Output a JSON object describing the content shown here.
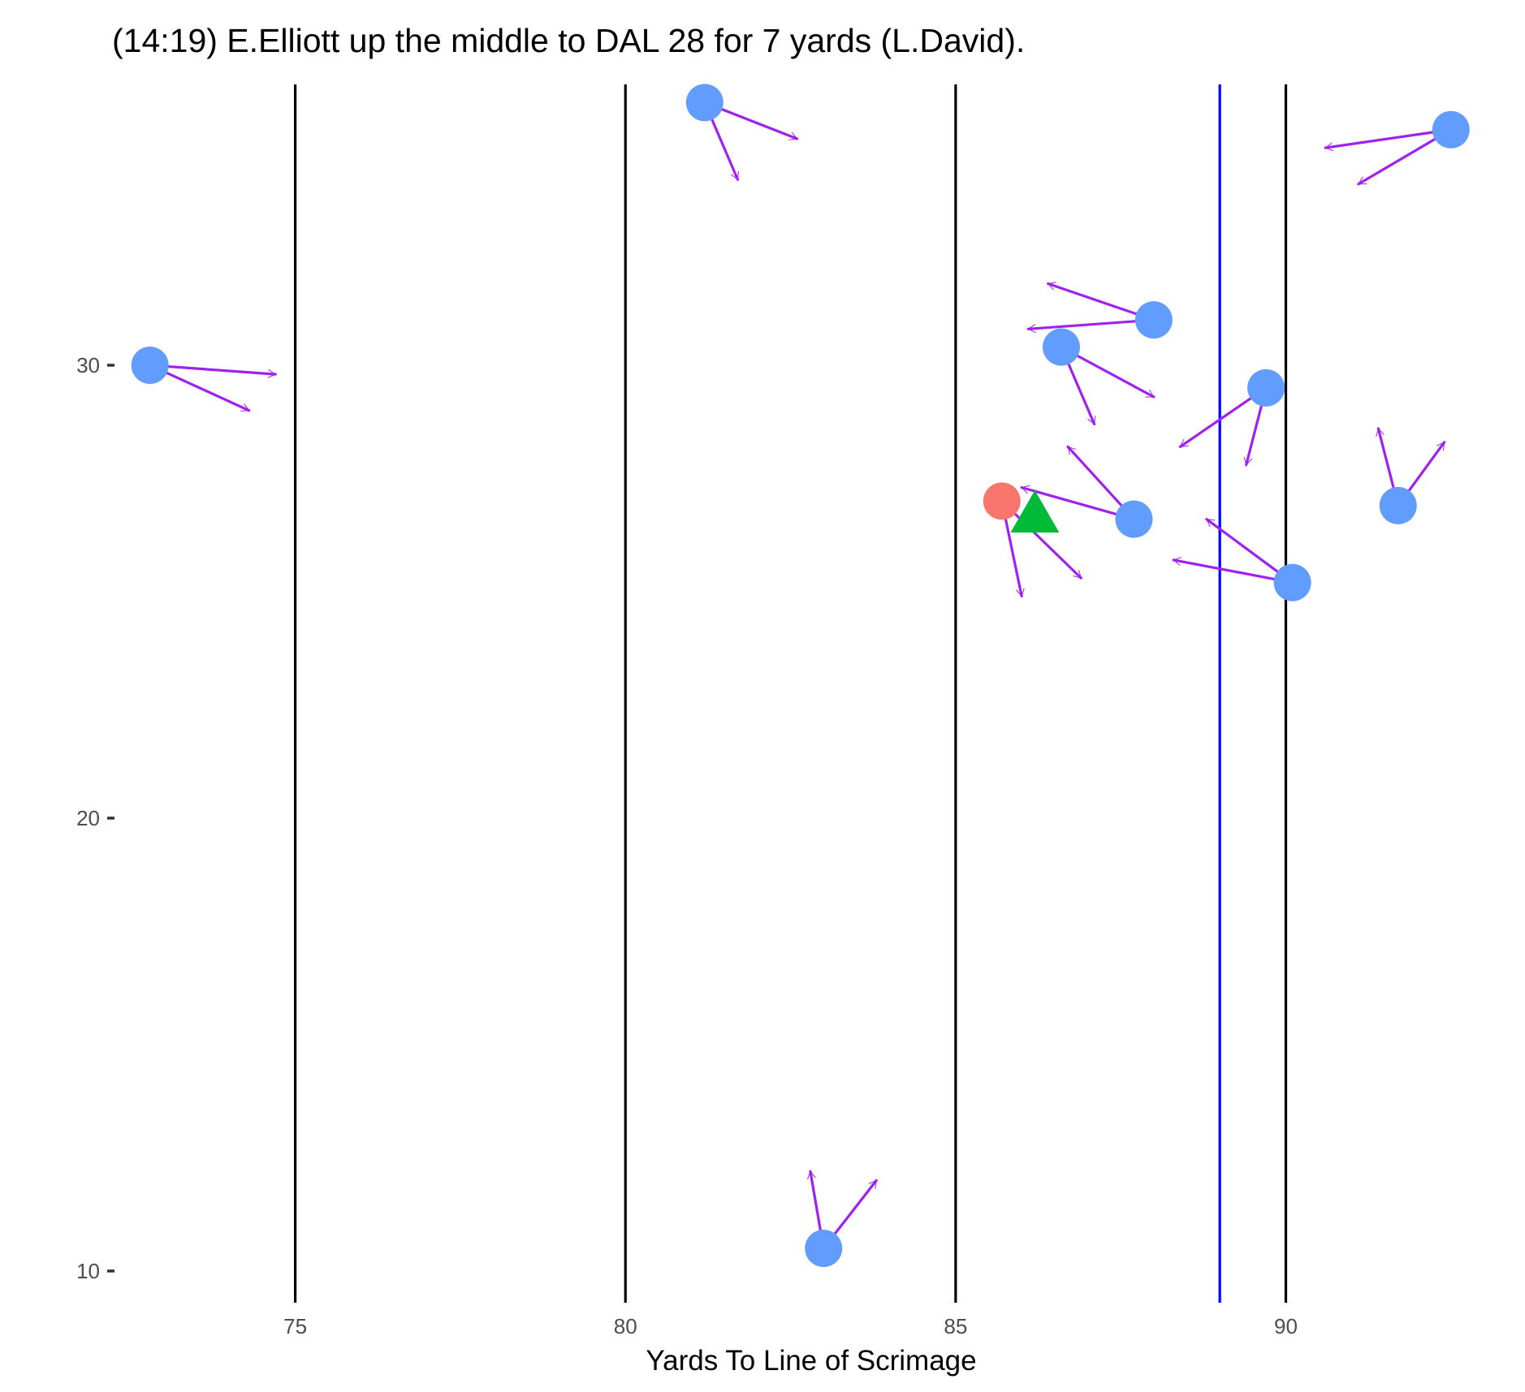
{
  "chart_data": {
    "type": "scatter",
    "title": "(14:19) E.Elliott up the middle to DAL 28 for 7 yards (L.David).",
    "xlabel": "Yards To Line of Scrimage",
    "ylabel": "",
    "xlim": [
      72.3,
      93.4
    ],
    "ylim": [
      9.3,
      36.2
    ],
    "x_ticks": [
      75,
      80,
      85,
      90
    ],
    "x_tick_labels": [
      "75",
      "80",
      "85",
      "90"
    ],
    "y_ticks": [
      10,
      20,
      30
    ],
    "y_tick_labels": [
      "10",
      "20",
      "30"
    ],
    "grid": false,
    "legend": "none",
    "yard_lines": [
      75,
      80,
      85,
      90
    ],
    "line_of_scrimmage": 89,
    "colors": {
      "player": "#619CFF",
      "ball_carrier": "#F8766D",
      "football": "#00BA38",
      "vector": "#A020F0",
      "yard_line": "#000000",
      "scrimmage_line": "#0000FF"
    },
    "players": [
      {
        "role": "defense",
        "x": 72.8,
        "y": 30.0,
        "v1": [
          74.7,
          29.8
        ],
        "v2": [
          74.3,
          29.0
        ]
      },
      {
        "role": "defense",
        "x": 81.2,
        "y": 35.8,
        "v1": [
          82.6,
          35.0
        ],
        "v2": [
          81.7,
          34.1
        ]
      },
      {
        "role": "defense",
        "x": 92.5,
        "y": 35.2,
        "v1": [
          90.6,
          34.8
        ],
        "v2": [
          91.1,
          34.0
        ]
      },
      {
        "role": "defense",
        "x": 88.0,
        "y": 31.0,
        "v1": [
          86.4,
          31.8
        ],
        "v2": [
          86.1,
          30.8
        ]
      },
      {
        "role": "defense",
        "x": 86.6,
        "y": 30.4,
        "v1": [
          88.0,
          29.3
        ],
        "v2": [
          87.1,
          28.7
        ]
      },
      {
        "role": "defense",
        "x": 89.7,
        "y": 29.5,
        "v1": [
          88.4,
          28.2
        ],
        "v2": [
          89.4,
          27.8
        ]
      },
      {
        "role": "defense",
        "x": 91.7,
        "y": 26.9,
        "v1": [
          92.4,
          28.3
        ],
        "v2": [
          91.4,
          28.6
        ]
      },
      {
        "role": "defense",
        "x": 87.7,
        "y": 26.6,
        "v1": [
          86.0,
          27.3
        ],
        "v2": [
          86.7,
          28.2
        ]
      },
      {
        "role": "defense",
        "x": 90.1,
        "y": 25.2,
        "v1": [
          88.3,
          25.7
        ],
        "v2": [
          88.8,
          26.6
        ]
      },
      {
        "role": "defense",
        "x": 83.0,
        "y": 10.5,
        "v1": [
          82.8,
          12.2
        ],
        "v2": [
          83.8,
          12.0
        ]
      },
      {
        "role": "ball_carrier",
        "x": 85.7,
        "y": 27.0,
        "v1": [
          86.9,
          25.3
        ],
        "v2": [
          86.0,
          24.9
        ]
      }
    ],
    "football": {
      "x": 86.2,
      "y": 26.7
    }
  }
}
